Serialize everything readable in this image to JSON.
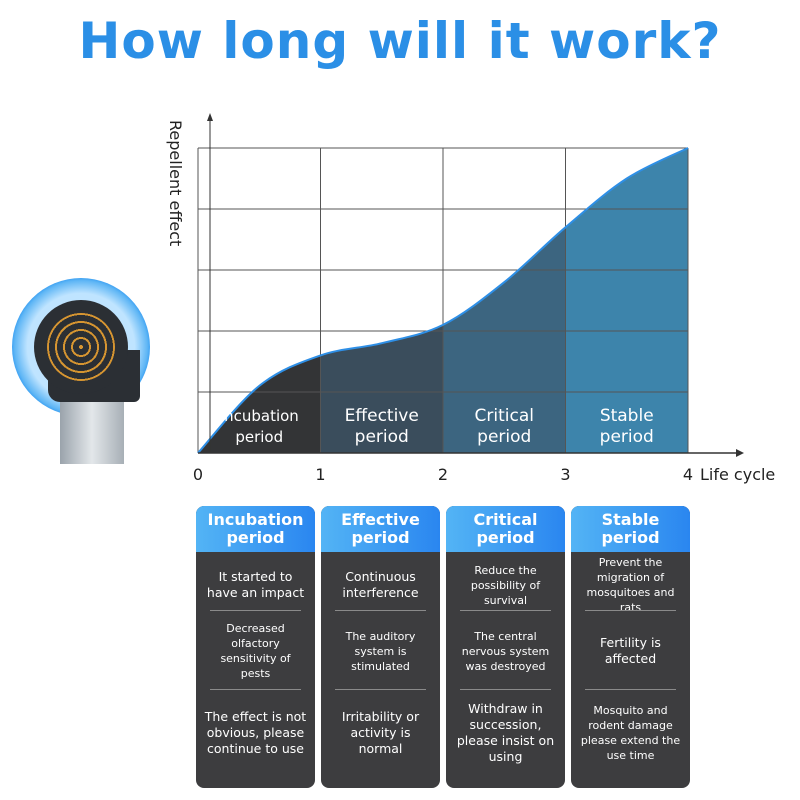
{
  "title": "How long will it work?",
  "colors": {
    "accent": "#2b8fe6",
    "curve": "#2e8fe6",
    "incubation": "#333436",
    "effective": "#3a4d5c",
    "critical": "#3c6580",
    "stable": "#3d84ab"
  },
  "device_icon": "ultrasonic-repeller-plug",
  "chart_data": {
    "type": "area",
    "ylabel": "Repellent effect",
    "xlabel": "Life cycle",
    "x_ticks": [
      "0",
      "1",
      "2",
      "3",
      "4"
    ],
    "xlim": [
      0,
      4
    ],
    "ylim": [
      0,
      5
    ],
    "grid": true,
    "x": [
      0,
      0.5,
      1,
      1.5,
      2,
      2.5,
      3,
      3.5,
      4
    ],
    "y": [
      0,
      1.1,
      1.6,
      1.8,
      2.1,
      2.8,
      3.7,
      4.5,
      5
    ],
    "regions": [
      {
        "label": "Incubation period",
        "from": 0,
        "to": 1
      },
      {
        "label": "Effective period",
        "from": 1,
        "to": 2
      },
      {
        "label": "Critical period",
        "from": 2,
        "to": 3
      },
      {
        "label": "Stable period",
        "from": 3,
        "to": 4
      }
    ]
  },
  "cards": [
    {
      "title": "Incubation period",
      "items": [
        "It started to have an impact",
        "Decreased olfactory sensitivity of pests",
        "The effect is not obvious, please continue to use"
      ]
    },
    {
      "title": "Effective period",
      "items": [
        "Continuous interference",
        "The auditory system is stimulated",
        "Irritability or activity is normal"
      ]
    },
    {
      "title": "Critical period",
      "items": [
        "Reduce the possibility of survival",
        "The central nervous system was destroyed",
        "Withdraw in succession, please insist on using"
      ]
    },
    {
      "title": "Stable period",
      "items": [
        "Prevent the migration of mosquitoes and rats",
        "Fertility is affected",
        "Mosquito and rodent damage please extend the use time"
      ]
    }
  ]
}
